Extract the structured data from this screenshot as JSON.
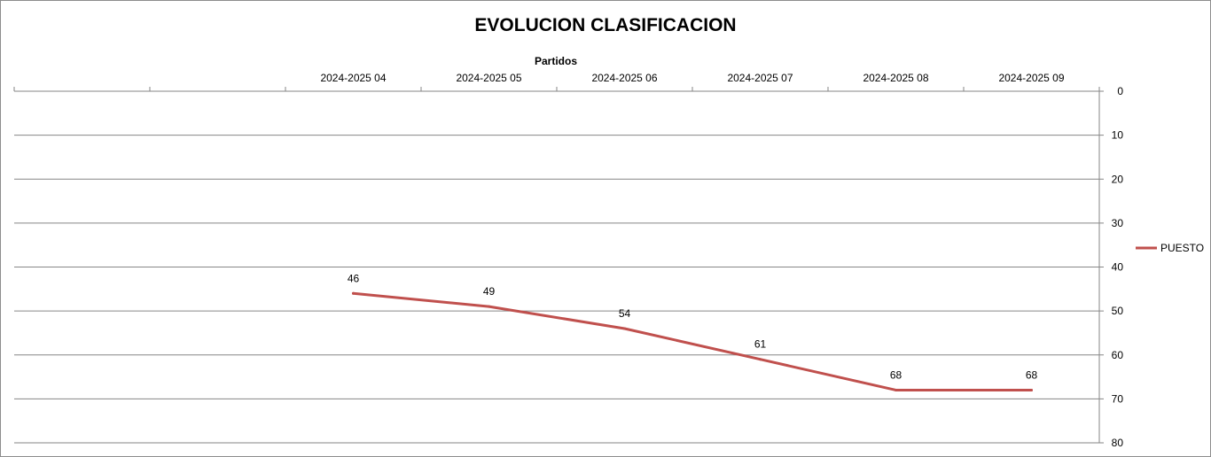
{
  "chart_data": {
    "type": "line",
    "title": "EVOLUCION CLASIFICACION",
    "xlabel": "Partidos",
    "ylabel": "",
    "categories": [
      "",
      "",
      "2024-2025 04",
      "2024-2025 05",
      "2024-2025 06",
      "2024-2025 07",
      "2024-2025 08",
      "2024-2025 09"
    ],
    "series": [
      {
        "name": "PUESTO",
        "values": [
          null,
          null,
          46,
          49,
          54,
          61,
          68,
          68
        ],
        "color": "#c0504d"
      }
    ],
    "ylim": [
      0,
      80
    ],
    "y_ticks": [
      0,
      10,
      20,
      30,
      40,
      50,
      60,
      70,
      80
    ],
    "y_reversed": true,
    "y_axis_side": "right",
    "x_axis_side": "top",
    "grid": true,
    "legend": "right",
    "data_labels": true
  }
}
